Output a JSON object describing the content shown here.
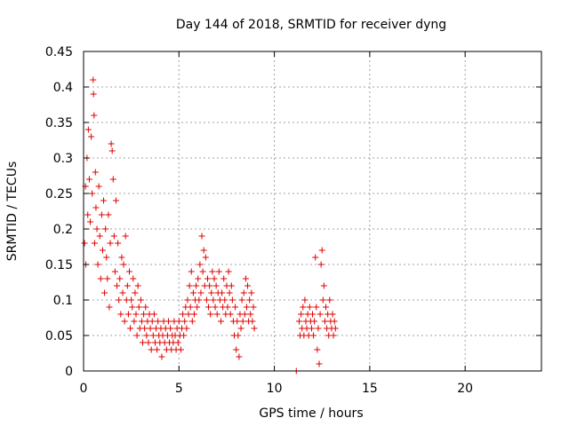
{
  "chart_data": {
    "type": "scatter",
    "title": "Day 144 of 2018, SRMTID for receiver dyng",
    "xlabel": "GPS time / hours",
    "ylabel": "SRMTID / TECUs",
    "xlim": [
      0,
      24
    ],
    "ylim": [
      0,
      0.45
    ],
    "xticks": [
      0,
      5,
      10,
      15,
      20
    ],
    "xtick_labels": [
      "0",
      "5",
      "10",
      "15",
      "20"
    ],
    "yticks": [
      0,
      0.05,
      0.1,
      0.15,
      0.2,
      0.25,
      0.3,
      0.35,
      0.4,
      0.45
    ],
    "ytick_labels": [
      "0",
      "0.05",
      "0.1",
      "0.15",
      "0.2",
      "0.25",
      "0.3",
      "0.35",
      "0.4",
      "0.45"
    ],
    "grid": true,
    "marker": "+",
    "marker_color": "#e00000",
    "series": [
      {
        "name": "SRMTID",
        "points": [
          [
            0.05,
            0.18
          ],
          [
            0.1,
            0.26
          ],
          [
            0.12,
            0.15
          ],
          [
            0.18,
            0.3
          ],
          [
            0.22,
            0.22
          ],
          [
            0.25,
            0.34
          ],
          [
            0.3,
            0.27
          ],
          [
            0.35,
            0.21
          ],
          [
            0.4,
            0.33
          ],
          [
            0.45,
            0.25
          ],
          [
            0.5,
            0.41
          ],
          [
            0.52,
            0.39
          ],
          [
            0.55,
            0.36
          ],
          [
            0.58,
            0.18
          ],
          [
            0.62,
            0.28
          ],
          [
            0.65,
            0.23
          ],
          [
            0.7,
            0.2
          ],
          [
            0.75,
            0.15
          ],
          [
            0.8,
            0.26
          ],
          [
            0.85,
            0.19
          ],
          [
            0.9,
            0.13
          ],
          [
            0.95,
            0.22
          ],
          [
            1.0,
            0.17
          ],
          [
            1.05,
            0.24
          ],
          [
            1.1,
            0.11
          ],
          [
            1.15,
            0.2
          ],
          [
            1.2,
            0.16
          ],
          [
            1.25,
            0.13
          ],
          [
            1.3,
            0.22
          ],
          [
            1.35,
            0.09
          ],
          [
            1.4,
            0.18
          ],
          [
            1.45,
            0.32
          ],
          [
            1.5,
            0.31
          ],
          [
            1.55,
            0.27
          ],
          [
            1.6,
            0.19
          ],
          [
            1.65,
            0.14
          ],
          [
            1.7,
            0.24
          ],
          [
            1.75,
            0.12
          ],
          [
            1.8,
            0.18
          ],
          [
            1.85,
            0.1
          ],
          [
            1.9,
            0.13
          ],
          [
            1.95,
            0.08
          ],
          [
            2.0,
            0.16
          ],
          [
            2.05,
            0.11
          ],
          [
            2.1,
            0.15
          ],
          [
            2.15,
            0.07
          ],
          [
            2.2,
            0.19
          ],
          [
            2.25,
            0.1
          ],
          [
            2.3,
            0.12
          ],
          [
            2.35,
            0.08
          ],
          [
            2.4,
            0.14
          ],
          [
            2.45,
            0.06
          ],
          [
            2.5,
            0.1
          ],
          [
            2.55,
            0.09
          ],
          [
            2.6,
            0.13
          ],
          [
            2.65,
            0.07
          ],
          [
            2.7,
            0.11
          ],
          [
            2.75,
            0.08
          ],
          [
            2.8,
            0.05
          ],
          [
            2.85,
            0.12
          ],
          [
            2.9,
            0.09
          ],
          [
            2.95,
            0.06
          ],
          [
            3.0,
            0.1
          ],
          [
            3.05,
            0.07
          ],
          [
            3.1,
            0.04
          ],
          [
            3.15,
            0.08
          ],
          [
            3.2,
            0.06
          ],
          [
            3.25,
            0.09
          ],
          [
            3.3,
            0.05
          ],
          [
            3.35,
            0.07
          ],
          [
            3.4,
            0.04
          ],
          [
            3.45,
            0.08
          ],
          [
            3.5,
            0.06
          ],
          [
            3.55,
            0.03
          ],
          [
            3.6,
            0.07
          ],
          [
            3.65,
            0.05
          ],
          [
            3.7,
            0.08
          ],
          [
            3.75,
            0.04
          ],
          [
            3.8,
            0.06
          ],
          [
            3.85,
            0.03
          ],
          [
            3.9,
            0.07
          ],
          [
            3.95,
            0.05
          ],
          [
            4.0,
            0.04
          ],
          [
            4.05,
            0.06
          ],
          [
            4.1,
            0.02
          ],
          [
            4.15,
            0.05
          ],
          [
            4.2,
            0.07
          ],
          [
            4.25,
            0.04
          ],
          [
            4.3,
            0.06
          ],
          [
            4.35,
            0.03
          ],
          [
            4.4,
            0.05
          ],
          [
            4.45,
            0.07
          ],
          [
            4.5,
            0.04
          ],
          [
            4.55,
            0.06
          ],
          [
            4.6,
            0.03
          ],
          [
            4.65,
            0.05
          ],
          [
            4.7,
            0.04
          ],
          [
            4.75,
            0.07
          ],
          [
            4.8,
            0.05
          ],
          [
            4.85,
            0.03
          ],
          [
            4.9,
            0.06
          ],
          [
            4.95,
            0.04
          ],
          [
            5.0,
            0.07
          ],
          [
            5.05,
            0.05
          ],
          [
            5.1,
            0.03
          ],
          [
            5.15,
            0.06
          ],
          [
            5.2,
            0.08
          ],
          [
            5.25,
            0.05
          ],
          [
            5.3,
            0.07
          ],
          [
            5.35,
            0.09
          ],
          [
            5.4,
            0.06
          ],
          [
            5.45,
            0.1
          ],
          [
            5.5,
            0.08
          ],
          [
            5.55,
            0.12
          ],
          [
            5.6,
            0.09
          ],
          [
            5.65,
            0.14
          ],
          [
            5.7,
            0.07
          ],
          [
            5.75,
            0.11
          ],
          [
            5.8,
            0.08
          ],
          [
            5.85,
            0.1
          ],
          [
            5.9,
            0.12
          ],
          [
            5.95,
            0.09
          ],
          [
            6.0,
            0.13
          ],
          [
            6.05,
            0.1
          ],
          [
            6.1,
            0.15
          ],
          [
            6.15,
            0.11
          ],
          [
            6.2,
            0.19
          ],
          [
            6.25,
            0.14
          ],
          [
            6.3,
            0.17
          ],
          [
            6.35,
            0.12
          ],
          [
            6.4,
            0.16
          ],
          [
            6.45,
            0.1
          ],
          [
            6.5,
            0.13
          ],
          [
            6.55,
            0.09
          ],
          [
            6.6,
            0.12
          ],
          [
            6.65,
            0.08
          ],
          [
            6.7,
            0.11
          ],
          [
            6.75,
            0.14
          ],
          [
            6.8,
            0.1
          ],
          [
            6.85,
            0.13
          ],
          [
            6.9,
            0.09
          ],
          [
            6.95,
            0.12
          ],
          [
            7.0,
            0.08
          ],
          [
            7.05,
            0.11
          ],
          [
            7.1,
            0.14
          ],
          [
            7.15,
            0.1
          ],
          [
            7.2,
            0.07
          ],
          [
            7.25,
            0.11
          ],
          [
            7.3,
            0.09
          ],
          [
            7.35,
            0.13
          ],
          [
            7.4,
            0.1
          ],
          [
            7.45,
            0.08
          ],
          [
            7.5,
            0.12
          ],
          [
            7.55,
            0.09
          ],
          [
            7.6,
            0.14
          ],
          [
            7.65,
            0.11
          ],
          [
            7.7,
            0.08
          ],
          [
            7.75,
            0.12
          ],
          [
            7.8,
            0.1
          ],
          [
            7.85,
            0.07
          ],
          [
            7.9,
            0.05
          ],
          [
            7.95,
            0.09
          ],
          [
            8.0,
            0.03
          ],
          [
            8.05,
            0.07
          ],
          [
            8.1,
            0.05
          ],
          [
            8.15,
            0.02
          ],
          [
            8.2,
            0.08
          ],
          [
            8.25,
            0.06
          ],
          [
            8.3,
            0.1
          ],
          [
            8.35,
            0.07
          ],
          [
            8.4,
            0.11
          ],
          [
            8.45,
            0.08
          ],
          [
            8.5,
            0.13
          ],
          [
            8.55,
            0.09
          ],
          [
            8.6,
            0.12
          ],
          [
            8.65,
            0.07
          ],
          [
            8.7,
            0.1
          ],
          [
            8.75,
            0.08
          ],
          [
            8.8,
            0.11
          ],
          [
            8.85,
            0.07
          ],
          [
            8.9,
            0.09
          ],
          [
            8.95,
            0.06
          ],
          [
            11.15,
            0.0
          ],
          [
            11.3,
            0.07
          ],
          [
            11.35,
            0.05
          ],
          [
            11.4,
            0.08
          ],
          [
            11.45,
            0.06
          ],
          [
            11.5,
            0.09
          ],
          [
            11.55,
            0.05
          ],
          [
            11.6,
            0.1
          ],
          [
            11.65,
            0.07
          ],
          [
            11.7,
            0.06
          ],
          [
            11.75,
            0.08
          ],
          [
            11.8,
            0.05
          ],
          [
            11.85,
            0.09
          ],
          [
            11.9,
            0.07
          ],
          [
            11.95,
            0.06
          ],
          [
            12.0,
            0.08
          ],
          [
            12.05,
            0.05
          ],
          [
            12.1,
            0.07
          ],
          [
            12.15,
            0.16
          ],
          [
            12.2,
            0.09
          ],
          [
            12.25,
            0.03
          ],
          [
            12.3,
            0.06
          ],
          [
            12.35,
            0.01
          ],
          [
            12.4,
            0.08
          ],
          [
            12.45,
            0.15
          ],
          [
            12.5,
            0.17
          ],
          [
            12.55,
            0.1
          ],
          [
            12.6,
            0.12
          ],
          [
            12.65,
            0.07
          ],
          [
            12.7,
            0.09
          ],
          [
            12.75,
            0.06
          ],
          [
            12.8,
            0.08
          ],
          [
            12.85,
            0.05
          ],
          [
            12.9,
            0.1
          ],
          [
            12.95,
            0.07
          ],
          [
            13.0,
            0.06
          ],
          [
            13.05,
            0.08
          ],
          [
            13.1,
            0.05
          ],
          [
            13.15,
            0.07
          ],
          [
            13.2,
            0.06
          ]
        ]
      }
    ]
  }
}
